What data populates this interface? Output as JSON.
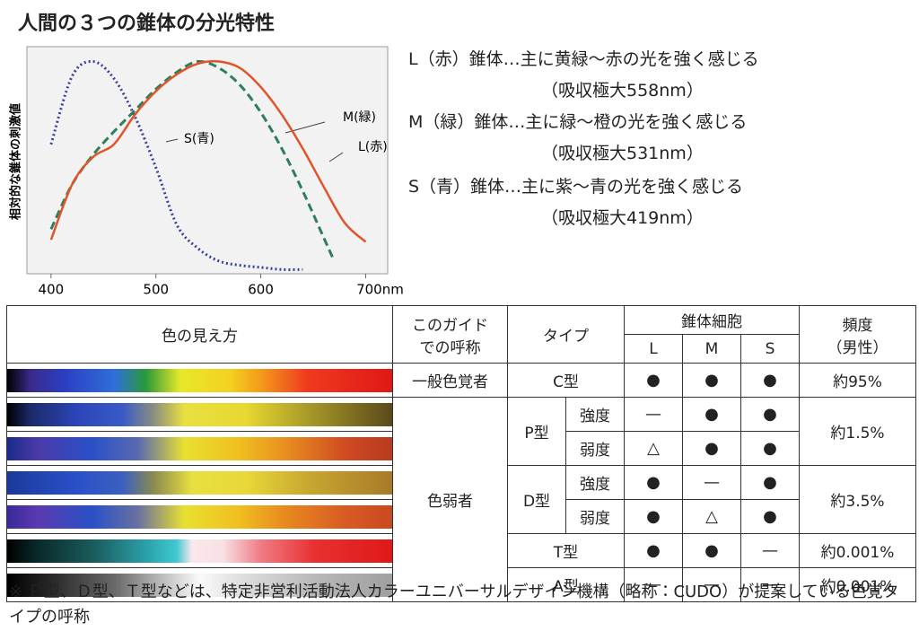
{
  "title": "人間の３つの錐体の分光特性",
  "chart_data": {
    "type": "line",
    "ylabel": "相対的な錐体の刺激値",
    "xlim": [
      377,
      721
    ],
    "ylim": [
      0,
      1.07
    ],
    "xticks": [
      400,
      500,
      600,
      {
        "value": 700,
        "label": "700nm"
      }
    ],
    "series": [
      {
        "name": "S(青)",
        "color": "#3a3fa0",
        "dash": "dotted",
        "x": [
          400,
          420,
          440,
          460,
          480,
          500,
          520,
          540,
          560,
          580,
          600,
          620,
          640
        ],
        "values": [
          0.61,
          0.93,
          1.0,
          0.92,
          0.74,
          0.5,
          0.23,
          0.12,
          0.06,
          0.04,
          0.03,
          0.02,
          0.02
        ]
      },
      {
        "name": "M(緑)",
        "color": "#2e7d5b",
        "dash": "dashed",
        "x": [
          400,
          420,
          440,
          460,
          480,
          500,
          520,
          540,
          560,
          580,
          600,
          620,
          640,
          660,
          670
        ],
        "values": [
          0.21,
          0.42,
          0.56,
          0.67,
          0.77,
          0.87,
          0.95,
          1.0,
          0.97,
          0.89,
          0.76,
          0.59,
          0.39,
          0.17,
          0.06
        ]
      },
      {
        "name": "L(赤)",
        "color": "#e0542a",
        "dash": "solid",
        "x": [
          400,
          420,
          440,
          460,
          480,
          500,
          520,
          540,
          560,
          580,
          600,
          620,
          640,
          660,
          680,
          700
        ],
        "values": [
          0.16,
          0.42,
          0.55,
          0.61,
          0.75,
          0.86,
          0.94,
          0.99,
          1.0,
          0.97,
          0.88,
          0.75,
          0.59,
          0.41,
          0.24,
          0.15
        ]
      }
    ]
  },
  "descriptions": [
    {
      "text": "L（赤）錐体…主に黄緑〜赤の光を強く感じる",
      "peak": "（吸収極大558nm）"
    },
    {
      "text": "M（緑）錐体…主に緑〜橙の光を強く感じる",
      "peak": "（吸収極大531nm）"
    },
    {
      "text": "S（青）錐体…主に紫〜青の光を強く感じる",
      "peak": "（吸収極大419nm）"
    }
  ],
  "table": {
    "header": {
      "appearance": "色の見え方",
      "name_lines": [
        "このガイド",
        "での呼称"
      ],
      "type": "タイプ",
      "cones": "錐体細胞",
      "cone_types": [
        "L",
        "M",
        "S"
      ],
      "frequency_lines": [
        "頻度",
        "（男性）"
      ]
    },
    "rows": [
      {
        "group": "一般色覚者",
        "type": "C型",
        "cells": [
          "●",
          "●",
          "●"
        ],
        "frequency": "約95%"
      },
      {
        "group": "色弱者",
        "type": "P型",
        "degree": "強度",
        "cells": [
          "—",
          "●",
          "●"
        ],
        "frequency": "約1.5%"
      },
      {
        "degree": "弱度",
        "cells": [
          "△",
          "●",
          "●"
        ]
      },
      {
        "type": "D型",
        "degree": "強度",
        "cells": [
          "●",
          "—",
          "●"
        ],
        "frequency": "約3.5%"
      },
      {
        "degree": "弱度",
        "cells": [
          "●",
          "△",
          "●"
        ]
      },
      {
        "type": "T型",
        "cells": [
          "●",
          "●",
          "—"
        ],
        "frequency": "約0.001%"
      },
      {
        "type": "A型",
        "cells": [
          "—",
          "—",
          "—"
        ],
        "frequency": "約0.001%"
      }
    ]
  },
  "footnote": "※ Ｐ型、Ｄ型、Ｔ型などは、特定非営利活動法人カラーユニバーサルデザイン機構（略称：CUDO）が提案している色覚タイプの呼称"
}
